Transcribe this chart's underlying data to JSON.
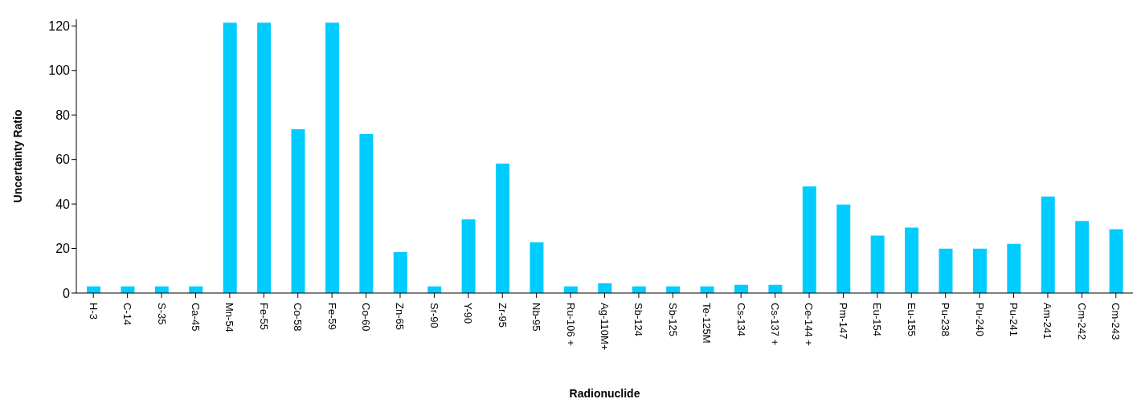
{
  "chart_data": {
    "type": "bar",
    "xlabel": "Radionuclide",
    "ylabel": "Uncertainty Ratio",
    "categories": [
      "H-3",
      "C-14",
      "S-35",
      "Ca-45",
      "Mn-54",
      "Fe-55",
      "Co-58",
      "Fe-59",
      "Co-60",
      "Zn-65",
      "Sr-90",
      "Y-90",
      "Zr-95",
      "Nb-95",
      "Ru-106 +",
      "Ag-110M+",
      "Sb-124",
      "Sb-125",
      "Te-125M",
      "Cs-134",
      "Cs-137 +",
      "Ce-144 +",
      "Pm-147",
      "Eu-154",
      "Eu-155",
      "Pu-238",
      "Pu-240",
      "Pu-241",
      "Am-241",
      "Cm-242",
      "Cm-243"
    ],
    "values": [
      3,
      3,
      3,
      3,
      121.5,
      121.5,
      73.6,
      121.5,
      71.4,
      18.4,
      3,
      33.1,
      58.2,
      22.8,
      3,
      4.4,
      3,
      3,
      3,
      3.7,
      3.7,
      47.9,
      39.8,
      25.8,
      29.4,
      19.9,
      19.9,
      22.1,
      43.4,
      32.4,
      28.7
    ],
    "color": "#00ccff",
    "ylim": [
      0,
      123
    ],
    "yticks": [
      0,
      20,
      40,
      60,
      80,
      100,
      120
    ],
    "grid": false,
    "legend": false
  }
}
